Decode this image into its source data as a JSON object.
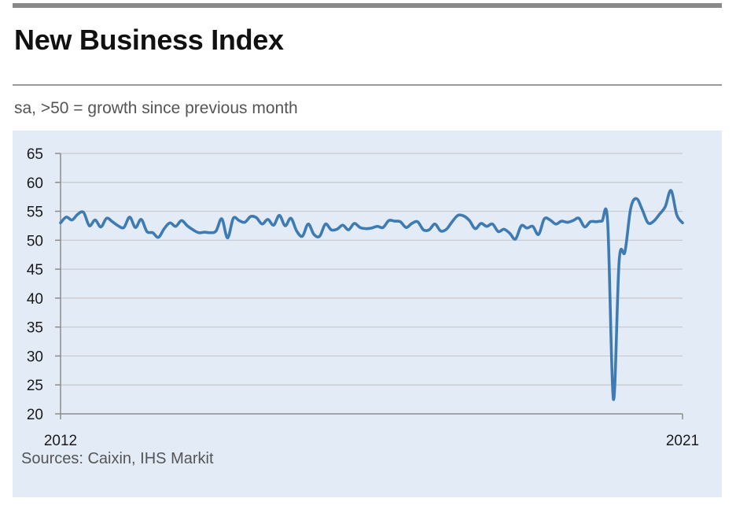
{
  "title": "New Business Index",
  "subtitle": "sa, >50 = growth since previous month",
  "source": "Sources: Caixin, IHS Markit",
  "colors": {
    "line": "#3e7bb3",
    "panel": "#e3ebf6",
    "grid": "#c9c9c9",
    "axis": "#8c8c8c"
  },
  "chart_data": {
    "type": "line",
    "title": "New Business Index",
    "subtitle": "sa, >50 = growth since previous month",
    "xlabel": "",
    "ylabel": "",
    "x_tick_labels": [
      "2012",
      "2021"
    ],
    "x_range": [
      "2012-01",
      "2021-01"
    ],
    "ylim": [
      20,
      65
    ],
    "y_ticks": [
      20,
      25,
      30,
      35,
      40,
      45,
      50,
      55,
      60,
      65
    ],
    "grid": "horizontal",
    "legend": "none",
    "series": [
      {
        "name": "",
        "x": [
          "2012-01",
          "2012-02",
          "2012-03",
          "2012-04",
          "2012-05",
          "2012-06",
          "2012-07",
          "2012-08",
          "2012-09",
          "2012-10",
          "2012-11",
          "2012-12",
          "2013-01",
          "2013-02",
          "2013-03",
          "2013-04",
          "2013-05",
          "2013-06",
          "2013-07",
          "2013-08",
          "2013-09",
          "2013-10",
          "2013-11",
          "2013-12",
          "2014-01",
          "2014-02",
          "2014-03",
          "2014-04",
          "2014-05",
          "2014-06",
          "2014-07",
          "2014-08",
          "2014-09",
          "2014-10",
          "2014-11",
          "2014-12",
          "2015-01",
          "2015-02",
          "2015-03",
          "2015-04",
          "2015-05",
          "2015-06",
          "2015-07",
          "2015-08",
          "2015-09",
          "2015-10",
          "2015-11",
          "2015-12",
          "2016-01",
          "2016-02",
          "2016-03",
          "2016-04",
          "2016-05",
          "2016-06",
          "2016-07",
          "2016-08",
          "2016-09",
          "2016-10",
          "2016-11",
          "2016-12",
          "2017-01",
          "2017-02",
          "2017-03",
          "2017-04",
          "2017-05",
          "2017-06",
          "2017-07",
          "2017-08",
          "2017-09",
          "2017-10",
          "2017-11",
          "2017-12",
          "2018-01",
          "2018-02",
          "2018-03",
          "2018-04",
          "2018-05",
          "2018-06",
          "2018-07",
          "2018-08",
          "2018-09",
          "2018-10",
          "2018-11",
          "2018-12",
          "2019-01",
          "2019-02",
          "2019-03",
          "2019-04",
          "2019-05",
          "2019-06",
          "2019-07",
          "2019-08",
          "2019-09",
          "2019-10",
          "2019-11",
          "2019-12",
          "2020-01",
          "2020-02",
          "2020-03",
          "2020-04",
          "2020-05",
          "2020-06",
          "2020-07",
          "2020-08",
          "2020-09",
          "2020-10",
          "2020-11",
          "2020-12",
          "2021-01"
        ],
        "values": [
          53.0,
          54.0,
          53.5,
          54.5,
          54.8,
          52.5,
          53.5,
          52.3,
          53.8,
          53.2,
          52.5,
          52.2,
          54.0,
          52.2,
          53.6,
          51.5,
          51.3,
          50.5,
          52.0,
          53.0,
          52.4,
          53.4,
          52.5,
          51.8,
          51.3,
          51.4,
          51.3,
          51.6,
          53.7,
          50.4,
          53.8,
          53.4,
          53.1,
          54.1,
          53.9,
          52.8,
          53.6,
          52.6,
          54.3,
          52.5,
          53.8,
          51.6,
          50.7,
          52.8,
          51.0,
          50.7,
          52.8,
          51.8,
          51.9,
          52.6,
          51.8,
          52.9,
          52.2,
          52.0,
          52.1,
          52.4,
          52.2,
          53.4,
          53.3,
          53.2,
          52.2,
          52.9,
          53.2,
          51.8,
          51.8,
          52.8,
          51.6,
          51.9,
          53.2,
          54.3,
          54.2,
          53.4,
          52.0,
          52.9,
          52.4,
          52.8,
          51.5,
          51.9,
          51.2,
          50.2,
          52.5,
          52.1,
          52.4,
          51.0,
          53.7,
          53.5,
          52.8,
          53.3,
          53.1,
          53.4,
          53.8,
          52.3,
          53.2,
          53.2,
          53.3,
          53.1,
          22.5,
          46.5,
          48.0,
          55.5,
          57.2,
          55.3,
          53.0,
          53.3,
          54.5,
          55.8,
          58.6,
          54.4,
          53.0
        ]
      }
    ]
  }
}
